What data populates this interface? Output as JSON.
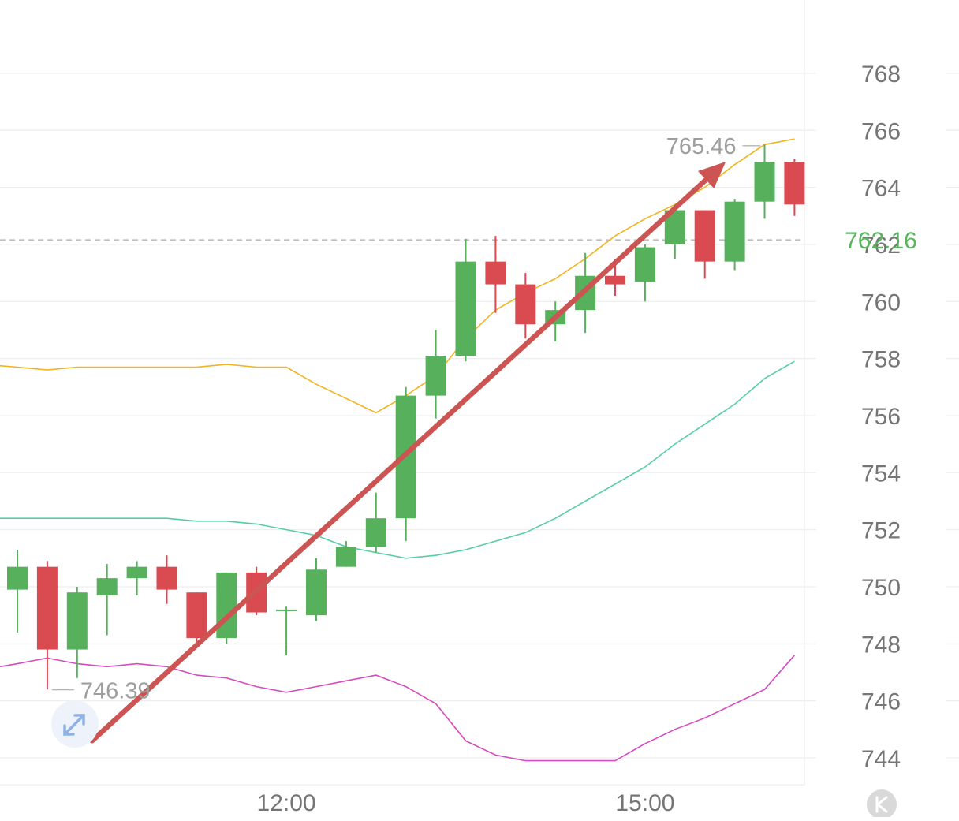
{
  "chart_data": {
    "type": "candlestick",
    "y_ticks": [
      "744",
      "746",
      "748",
      "750",
      "752",
      "754",
      "756",
      "758",
      "760",
      "762",
      "764",
      "766",
      "768"
    ],
    "ylim": [
      743,
      770
    ],
    "x_tick_labels": [
      {
        "label": "12:00",
        "index": 9
      },
      {
        "label": "15:00",
        "index": 21
      }
    ],
    "current_price": {
      "value": 762.16,
      "label": "762.16"
    },
    "high_annotation": {
      "value": 765.46,
      "label": "765.46",
      "index": 25
    },
    "low_annotation": {
      "value": 746.39,
      "label": "746.39",
      "index": 1
    },
    "candles": [
      {
        "o": 749.9,
        "h": 751.3,
        "l": 748.4,
        "c": 750.7
      },
      {
        "o": 750.7,
        "h": 750.9,
        "l": 746.4,
        "c": 747.8
      },
      {
        "o": 747.8,
        "h": 750.0,
        "l": 746.8,
        "c": 749.8
      },
      {
        "o": 749.7,
        "h": 750.8,
        "l": 748.3,
        "c": 750.3
      },
      {
        "o": 750.3,
        "h": 750.9,
        "l": 749.7,
        "c": 750.7
      },
      {
        "o": 750.7,
        "h": 751.1,
        "l": 749.4,
        "c": 749.9
      },
      {
        "o": 749.8,
        "h": 749.8,
        "l": 748.0,
        "c": 748.2
      },
      {
        "o": 748.2,
        "h": 750.5,
        "l": 748.0,
        "c": 750.5
      },
      {
        "o": 750.5,
        "h": 750.7,
        "l": 749.0,
        "c": 749.1
      },
      {
        "o": 749.2,
        "h": 749.3,
        "l": 747.6,
        "c": 749.2
      },
      {
        "o": 749.0,
        "h": 751.0,
        "l": 748.8,
        "c": 750.6
      },
      {
        "o": 750.7,
        "h": 751.6,
        "l": 750.7,
        "c": 751.4
      },
      {
        "o": 751.4,
        "h": 753.3,
        "l": 751.2,
        "c": 752.4
      },
      {
        "o": 752.4,
        "h": 757.0,
        "l": 751.6,
        "c": 756.7
      },
      {
        "o": 756.7,
        "h": 759.0,
        "l": 755.9,
        "c": 758.1
      },
      {
        "o": 758.1,
        "h": 762.2,
        "l": 757.9,
        "c": 761.4
      },
      {
        "o": 761.4,
        "h": 762.3,
        "l": 759.6,
        "c": 760.6
      },
      {
        "o": 760.6,
        "h": 761.0,
        "l": 758.7,
        "c": 759.2
      },
      {
        "o": 759.2,
        "h": 760.0,
        "l": 758.6,
        "c": 759.7
      },
      {
        "o": 759.7,
        "h": 761.7,
        "l": 758.9,
        "c": 760.9
      },
      {
        "o": 760.9,
        "h": 761.5,
        "l": 760.2,
        "c": 760.6
      },
      {
        "o": 760.7,
        "h": 762.0,
        "l": 760.0,
        "c": 761.9
      },
      {
        "o": 762.0,
        "h": 763.4,
        "l": 761.5,
        "c": 763.2
      },
      {
        "o": 763.2,
        "h": 763.2,
        "l": 760.8,
        "c": 761.4
      },
      {
        "o": 761.4,
        "h": 763.6,
        "l": 761.1,
        "c": 763.5
      },
      {
        "o": 763.5,
        "h": 765.5,
        "l": 762.9,
        "c": 764.9
      },
      {
        "o": 764.9,
        "h": 765.0,
        "l": 763.0,
        "c": 763.4
      }
    ],
    "bands": {
      "upper": [
        757.7,
        757.6,
        757.7,
        757.7,
        757.7,
        757.7,
        757.7,
        757.8,
        757.7,
        757.7,
        757.1,
        756.6,
        756.1,
        756.7,
        757.4,
        758.7,
        759.7,
        760.3,
        760.8,
        761.5,
        762.3,
        762.9,
        763.4,
        764.0,
        764.8,
        765.5,
        765.7
      ],
      "middle": [
        752.4,
        752.4,
        752.4,
        752.4,
        752.4,
        752.4,
        752.3,
        752.3,
        752.2,
        752.0,
        751.8,
        751.4,
        751.2,
        751.0,
        751.1,
        751.3,
        751.6,
        751.9,
        752.4,
        753.0,
        753.6,
        754.2,
        755.0,
        755.7,
        756.4,
        757.3,
        757.9
      ],
      "lower": [
        747.3,
        747.5,
        747.3,
        747.2,
        747.3,
        747.2,
        746.9,
        746.8,
        746.5,
        746.3,
        746.5,
        746.7,
        746.9,
        746.5,
        745.9,
        744.6,
        744.1,
        743.9,
        743.9,
        743.9,
        743.9,
        744.5,
        745.0,
        745.4,
        745.9,
        746.4,
        747.6
      ]
    },
    "trend_arrow": {
      "from": [
        2.5,
        744.6
      ],
      "to": [
        23.7,
        764.9
      ]
    },
    "grid": true,
    "colors": {
      "up": "#57b05c",
      "down": "#da4b51",
      "upper_band": "#f2b320",
      "middle_band": "#56cda8",
      "lower_band": "#d54cbf",
      "arrow": "#cc5452",
      "grid": "#eeeeee",
      "axis_text": "#757575",
      "current_price_text": "#5ab55e"
    }
  },
  "icons": {
    "expand": "expand-arrows-icon",
    "logo": "k-logo-icon"
  }
}
